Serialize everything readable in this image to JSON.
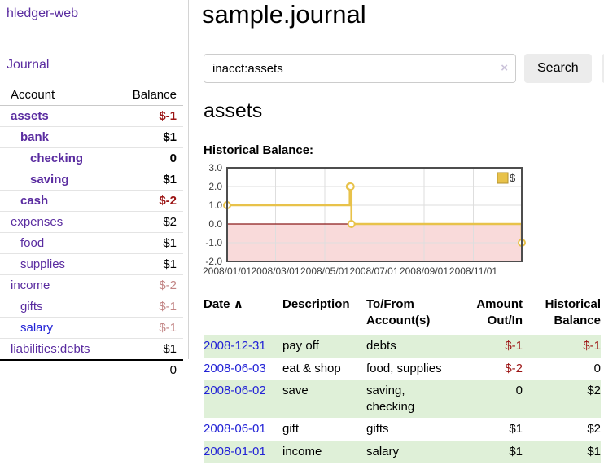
{
  "sidebar": {
    "app_title": "hledger-web",
    "journal_label": "Journal",
    "accounts_table": {
      "account_header": "Account",
      "balance_header": "Balance",
      "rows": [
        {
          "label": "assets",
          "depth": 1,
          "bold": true,
          "link": "visited",
          "balance": "$-1",
          "balance_variant": "neg-strong"
        },
        {
          "label": "bank",
          "depth": 2,
          "bold": true,
          "link": "visited",
          "balance": "$1",
          "balance_variant": "normal"
        },
        {
          "label": "checking",
          "depth": 3,
          "bold": true,
          "link": "visited",
          "balance": "0",
          "balance_variant": "normal"
        },
        {
          "label": "saving",
          "depth": 3,
          "bold": true,
          "link": "visited",
          "balance": "$1",
          "balance_variant": "normal"
        },
        {
          "label": "cash",
          "depth": 2,
          "bold": true,
          "link": "visited",
          "balance": "$-2",
          "balance_variant": "neg-strong"
        },
        {
          "label": "expenses",
          "depth": 1,
          "bold": false,
          "link": "visited",
          "balance": "$2",
          "balance_variant": "normal"
        },
        {
          "label": "food",
          "depth": 2,
          "bold": false,
          "link": "visited",
          "balance": "$1",
          "balance_variant": "normal"
        },
        {
          "label": "supplies",
          "depth": 2,
          "bold": false,
          "link": "visited",
          "balance": "$1",
          "balance_variant": "normal"
        },
        {
          "label": "income",
          "depth": 1,
          "bold": false,
          "link": "visited",
          "balance": "$-2",
          "balance_variant": "neg-muted"
        },
        {
          "label": "gifts",
          "depth": 2,
          "bold": false,
          "link": "visited",
          "balance": "$-1",
          "balance_variant": "neg-muted"
        },
        {
          "label": "salary",
          "depth": 2,
          "bold": false,
          "link": "unvisited",
          "balance": "$-1",
          "balance_variant": "neg-muted"
        },
        {
          "label": "liabilities:debts",
          "depth": 1,
          "bold": false,
          "link": "visited",
          "balance": "$1",
          "balance_variant": "normal"
        }
      ],
      "total": "0"
    }
  },
  "header": {
    "title": "sample.journal"
  },
  "search": {
    "query": "inacct:assets",
    "clear_icon": "×",
    "button_label": "Search",
    "help_label": "?"
  },
  "account_page": {
    "heading": "assets",
    "chart_label": "Historical Balance:"
  },
  "register": {
    "columns": [
      "Date",
      "Description",
      "To/From Account(s)",
      "Amount Out/In",
      "Historical Balance"
    ],
    "sort_arrow": "∧",
    "rows": [
      {
        "date": "2008-12-31",
        "description": "pay off",
        "accounts": "debts",
        "amount": "$-1",
        "balance": "$-1"
      },
      {
        "date": "2008-06-03",
        "description": "eat & shop",
        "accounts": "food, supplies",
        "amount": "$-2",
        "balance": "0"
      },
      {
        "date": "2008-06-02",
        "description": "save",
        "accounts": "saving, checking",
        "amount": "0",
        "balance": "$2"
      },
      {
        "date": "2008-06-01",
        "description": "gift",
        "accounts": "gifts",
        "amount": "$1",
        "balance": "$2"
      },
      {
        "date": "2008-01-01",
        "description": "income",
        "accounts": "salary",
        "amount": "$1",
        "balance": "$1"
      }
    ]
  },
  "chart_data": {
    "type": "line",
    "style": "steps",
    "title": "Historical Balance",
    "series": [
      {
        "name": "$",
        "color": "#e8c24a",
        "points": [
          [
            "2008-01-01",
            1
          ],
          [
            "2008-06-01",
            2
          ],
          [
            "2008-06-02",
            2
          ],
          [
            "2008-06-03",
            0
          ],
          [
            "2008-12-31",
            -1
          ]
        ]
      }
    ],
    "x_range": [
      "2008-01-01",
      "2008-12-31"
    ],
    "x_ticks": [
      "2008/01/01",
      "2008/03/01",
      "2008/05/01",
      "2008/07/01",
      "2008/09/01",
      "2008/11/01"
    ],
    "y_ticks": [
      3.0,
      2.0,
      1.0,
      0.0,
      -1.0,
      -2.0
    ],
    "ylim": [
      -2,
      3
    ],
    "grid": true,
    "legend_position": "top-right",
    "negative_region_color": "#f9dada",
    "zero_line_color": "#8b1a1a"
  },
  "colors": {
    "link_purple": "#5a2ca0",
    "link_blue": "#2323d6",
    "negative_strong": "#9b1313",
    "negative_muted": "#c28585",
    "row_stripe_green": "#dff0d8",
    "series_yellow": "#e8c24a"
  }
}
